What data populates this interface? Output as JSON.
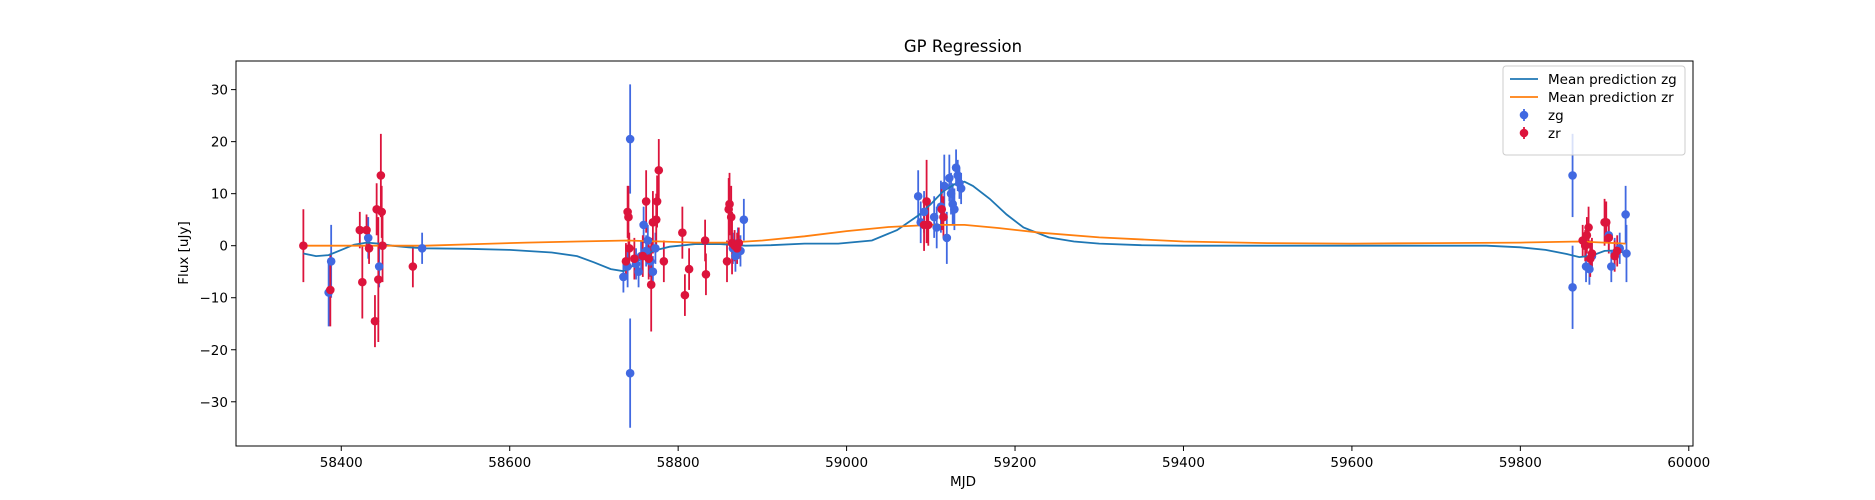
{
  "chart_data": {
    "type": "scatter",
    "title": "GP Regression",
    "xlabel": "MJD",
    "ylabel": "Flux [uJy]",
    "xlim": [
      58275,
      60005
    ],
    "ylim": [
      -38.5,
      35.5
    ],
    "xticks": [
      58400,
      58600,
      58800,
      59000,
      59200,
      59400,
      59600,
      59800,
      60000
    ],
    "yticks": [
      -30,
      -20,
      -10,
      0,
      10,
      20,
      30
    ],
    "xtick_labels": [
      "58400",
      "58600",
      "58800",
      "59000",
      "59200",
      "59400",
      "59600",
      "59800",
      "60000"
    ],
    "ytick_labels": [
      "−30",
      "−20",
      "−10",
      "0",
      "10",
      "20",
      "30"
    ],
    "grid": false,
    "legend_position": "top-right",
    "legend": [
      {
        "label": "Mean prediction zg",
        "kind": "line",
        "color": "#1f77b4"
      },
      {
        "label": "Mean prediction zr",
        "kind": "line",
        "color": "#ff7f0e"
      },
      {
        "label": "zg",
        "kind": "errorbar",
        "color": "#4169e1"
      },
      {
        "label": "zr",
        "kind": "errorbar",
        "color": "#dc143c"
      }
    ],
    "series": [
      {
        "name": "Mean prediction zg",
        "kind": "line",
        "color": "#1f77b4",
        "points": [
          [
            58355,
            -1.5
          ],
          [
            58370,
            -2.0
          ],
          [
            58385,
            -1.8
          ],
          [
            58400,
            -0.8
          ],
          [
            58415,
            0.2
          ],
          [
            58430,
            0.6
          ],
          [
            58445,
            0.4
          ],
          [
            58460,
            0.0
          ],
          [
            58480,
            -0.3
          ],
          [
            58500,
            -0.5
          ],
          [
            58550,
            -0.6
          ],
          [
            58600,
            -0.8
          ],
          [
            58650,
            -1.3
          ],
          [
            58680,
            -2.0
          ],
          [
            58700,
            -3.2
          ],
          [
            58720,
            -4.5
          ],
          [
            58735,
            -4.9
          ],
          [
            58745,
            -4.0
          ],
          [
            58755,
            -2.6
          ],
          [
            58770,
            -1.0
          ],
          [
            58790,
            -0.2
          ],
          [
            58820,
            0.3
          ],
          [
            58850,
            0.3
          ],
          [
            58880,
            0.0
          ],
          [
            58910,
            0.1
          ],
          [
            58950,
            0.4
          ],
          [
            58990,
            0.4
          ],
          [
            59030,
            1.0
          ],
          [
            59060,
            3.0
          ],
          [
            59085,
            5.8
          ],
          [
            59100,
            8.0
          ],
          [
            59115,
            10.5
          ],
          [
            59130,
            12.0
          ],
          [
            59140,
            12.3
          ],
          [
            59150,
            11.5
          ],
          [
            59170,
            9.0
          ],
          [
            59190,
            6.0
          ],
          [
            59210,
            3.5
          ],
          [
            59240,
            1.6
          ],
          [
            59270,
            0.8
          ],
          [
            59300,
            0.4
          ],
          [
            59350,
            0.1
          ],
          [
            59400,
            0.0
          ],
          [
            59500,
            0.0
          ],
          [
            59600,
            0.0
          ],
          [
            59700,
            0.0
          ],
          [
            59760,
            0.0
          ],
          [
            59800,
            -0.3
          ],
          [
            59830,
            -0.8
          ],
          [
            59855,
            -1.6
          ],
          [
            59870,
            -2.2
          ],
          [
            59885,
            -1.9
          ],
          [
            59900,
            -1.0
          ],
          [
            59915,
            -0.9
          ],
          [
            59925,
            -1.5
          ]
        ]
      },
      {
        "name": "Mean prediction zr",
        "kind": "line",
        "color": "#ff7f0e",
        "points": [
          [
            58355,
            0.0
          ],
          [
            58400,
            0.0
          ],
          [
            58450,
            0.0
          ],
          [
            58500,
            0.0
          ],
          [
            58560,
            0.3
          ],
          [
            58620,
            0.6
          ],
          [
            58680,
            0.8
          ],
          [
            58740,
            1.0
          ],
          [
            58780,
            0.8
          ],
          [
            58820,
            0.6
          ],
          [
            58860,
            0.6
          ],
          [
            58900,
            1.0
          ],
          [
            58950,
            1.8
          ],
          [
            59000,
            2.8
          ],
          [
            59050,
            3.6
          ],
          [
            59100,
            4.0
          ],
          [
            59140,
            4.0
          ],
          [
            59180,
            3.4
          ],
          [
            59230,
            2.5
          ],
          [
            59300,
            1.6
          ],
          [
            59400,
            0.8
          ],
          [
            59500,
            0.5
          ],
          [
            59600,
            0.4
          ],
          [
            59700,
            0.5
          ],
          [
            59800,
            0.6
          ],
          [
            59870,
            0.8
          ],
          [
            59900,
            0.6
          ],
          [
            59925,
            0.4
          ]
        ]
      },
      {
        "name": "zg",
        "kind": "errorbar",
        "color": "#4169e1",
        "points": [
          [
            58385,
            -9.0,
            6.5
          ],
          [
            58388,
            -3.0,
            7.0
          ],
          [
            58432,
            1.5,
            4.0
          ],
          [
            58445,
            -4.0,
            4.0
          ],
          [
            58496,
            -0.5,
            3.0
          ],
          [
            58735,
            -6.0,
            3.0
          ],
          [
            58740,
            -4.0,
            4.0
          ],
          [
            58743,
            20.5,
            10.5
          ],
          [
            58743,
            -24.5,
            10.5
          ],
          [
            58750,
            -3.5,
            3.0
          ],
          [
            58753,
            -5.0,
            3.0
          ],
          [
            58756,
            -2.0,
            3.0
          ],
          [
            58759,
            4.0,
            3.5
          ],
          [
            58762,
            -1.0,
            3.0
          ],
          [
            58764,
            1.0,
            3.0
          ],
          [
            58767,
            -3.0,
            3.0
          ],
          [
            58770,
            -5.0,
            3.0
          ],
          [
            58773,
            -0.5,
            3.0
          ],
          [
            58865,
            -0.5,
            3.0
          ],
          [
            58868,
            -2.0,
            3.0
          ],
          [
            58871,
            0.5,
            3.0
          ],
          [
            58874,
            -1.0,
            3.0
          ],
          [
            58878,
            5.0,
            4.0
          ],
          [
            59085,
            9.5,
            5.0
          ],
          [
            59088,
            4.5,
            4.0
          ],
          [
            59092,
            6.5,
            4.0
          ],
          [
            59104,
            5.5,
            4.0
          ],
          [
            59107,
            3.5,
            4.0
          ],
          [
            59112,
            7.5,
            5.0
          ],
          [
            59116,
            11.5,
            6.0
          ],
          [
            59119,
            1.5,
            5.0
          ],
          [
            59122,
            13.0,
            4.5
          ],
          [
            59124,
            10.0,
            4.0
          ],
          [
            59126,
            8.0,
            4.0
          ],
          [
            59128,
            7.0,
            4.0
          ],
          [
            59130,
            15.0,
            3.5
          ],
          [
            59132,
            13.5,
            3.0
          ],
          [
            59134,
            12.0,
            3.0
          ],
          [
            59136,
            11.0,
            3.0
          ],
          [
            59862,
            13.5,
            8.0
          ],
          [
            59862,
            -8.0,
            8.0
          ],
          [
            59878,
            -4.0,
            3.0
          ],
          [
            59882,
            -4.5,
            3.0
          ],
          [
            59885,
            -2.0,
            3.0
          ],
          [
            59905,
            2.0,
            3.0
          ],
          [
            59908,
            -4.0,
            3.0
          ],
          [
            59912,
            -1.5,
            3.0
          ],
          [
            59918,
            -0.5,
            3.0
          ],
          [
            59925,
            6.0,
            5.5
          ],
          [
            59926,
            -1.5,
            5.5
          ]
        ]
      },
      {
        "name": "zr",
        "kind": "errorbar",
        "color": "#dc143c",
        "points": [
          [
            58355,
            0.0,
            7.0
          ],
          [
            58387,
            -8.5,
            7.0
          ],
          [
            58422,
            3.0,
            3.5
          ],
          [
            58425,
            -7.0,
            7.0
          ],
          [
            58430,
            3.0,
            3.0
          ],
          [
            58433,
            -0.5,
            3.0
          ],
          [
            58440,
            -14.5,
            5.0
          ],
          [
            58442,
            7.0,
            5.0
          ],
          [
            58444,
            -6.5,
            12.0
          ],
          [
            58447,
            13.5,
            8.0
          ],
          [
            58449,
            0.0,
            7.0
          ],
          [
            58448,
            6.5,
            5.0
          ],
          [
            58485,
            -4.0,
            4.0
          ],
          [
            58738,
            -3.0,
            3.5
          ],
          [
            58740,
            6.5,
            5.0
          ],
          [
            58741,
            5.5,
            6.0
          ],
          [
            58742,
            -0.5,
            3.0
          ],
          [
            58748,
            -2.5,
            4.0
          ],
          [
            58758,
            -2.0,
            4.0
          ],
          [
            58762,
            8.5,
            6.0
          ],
          [
            58765,
            -2.5,
            4.0
          ],
          [
            58768,
            -7.5,
            9.0
          ],
          [
            58770,
            4.5,
            6.0
          ],
          [
            58774,
            5.0,
            5.0
          ],
          [
            58775,
            8.5,
            5.0
          ],
          [
            58777,
            14.5,
            6.0
          ],
          [
            58783,
            -3.0,
            4.0
          ],
          [
            58805,
            2.5,
            5.0
          ],
          [
            58808,
            -9.5,
            4.0
          ],
          [
            58813,
            -4.5,
            4.0
          ],
          [
            58832,
            1.0,
            4.0
          ],
          [
            58833,
            -5.5,
            4.0
          ],
          [
            58858,
            -3.0,
            4.0
          ],
          [
            58860,
            7.0,
            6.0
          ],
          [
            58861,
            8.0,
            6.0
          ],
          [
            58863,
            5.5,
            6.0
          ],
          [
            58864,
            0.5,
            6.0
          ],
          [
            58867,
            0.0,
            3.0
          ],
          [
            58870,
            -0.5,
            3.0
          ],
          [
            58872,
            0.5,
            3.0
          ],
          [
            59092,
            4.0,
            5.0
          ],
          [
            59095,
            8.5,
            8.0
          ],
          [
            59097,
            4.0,
            4.0
          ],
          [
            59113,
            7.0,
            4.0
          ],
          [
            59115,
            5.5,
            4.0
          ],
          [
            59874,
            1.0,
            3.0
          ],
          [
            59877,
            0.0,
            3.0
          ],
          [
            59879,
            2.0,
            3.5
          ],
          [
            59881,
            3.5,
            4.0
          ],
          [
            59883,
            -2.5,
            3.5
          ],
          [
            59885,
            -1.5,
            3.0
          ],
          [
            59900,
            4.5,
            4.5
          ],
          [
            59902,
            4.5,
            4.0
          ],
          [
            59905,
            1.5,
            3.0
          ],
          [
            59912,
            -2.0,
            3.0
          ],
          [
            59915,
            -1.0,
            3.0
          ]
        ]
      }
    ]
  }
}
